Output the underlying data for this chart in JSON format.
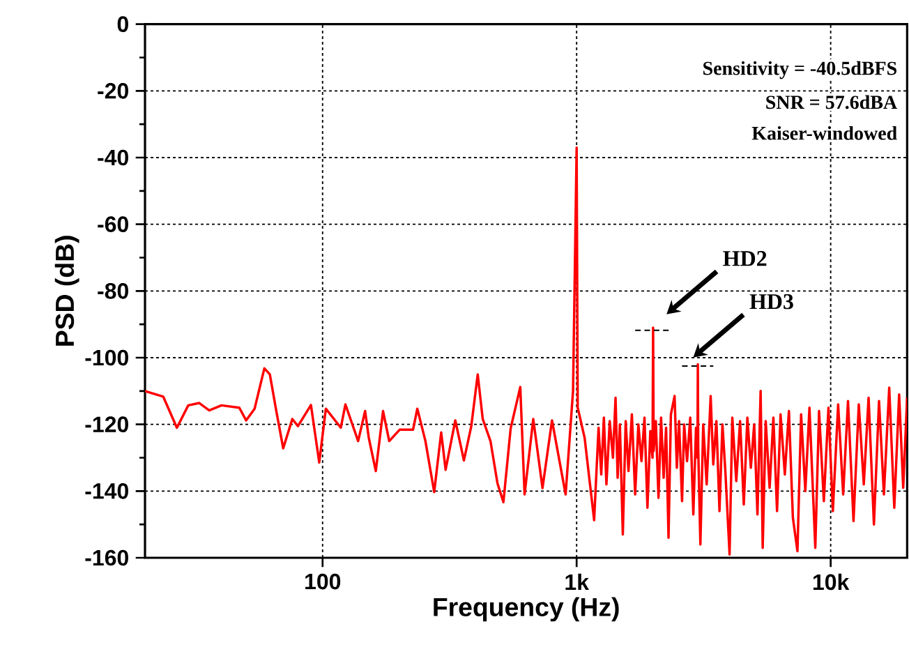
{
  "chart_data": {
    "type": "line",
    "xlabel": "Frequency (Hz)",
    "ylabel": "PSD (dB)",
    "log": "x",
    "grid": true,
    "xlim": [
      20,
      20000
    ],
    "ylim": [
      -160,
      0
    ],
    "xticks": [
      {
        "value": 100,
        "label": "100"
      },
      {
        "value": 1000,
        "label": "1k"
      },
      {
        "value": 10000,
        "label": "10k"
      }
    ],
    "yticks": [
      0,
      -20,
      -40,
      -60,
      -80,
      -100,
      -120,
      -140,
      -160
    ],
    "annotations": [
      "Sensitivity = -40.5dBFS",
      "SNR = 57.6dBA",
      "Kaiser-windowed",
      "HD2",
      "HD3"
    ],
    "x": [
      20,
      23.6,
      26.7,
      29.6,
      32.7,
      35.8,
      40,
      47,
      50,
      54,
      59,
      62,
      66,
      70,
      76,
      80,
      90,
      97,
      103,
      118,
      123,
      138,
      147,
      152,
      162,
      173,
      183,
      201,
      227,
      236,
      254,
      275,
      293,
      305,
      333,
      360,
      385,
      408,
      427,
      458,
      488,
      515,
      550,
      600,
      624,
      675,
      734,
      800,
      905,
      968,
      1000,
      1010,
      1075,
      1172,
      1220,
      1250,
      1280,
      1310,
      1350,
      1390,
      1423,
      1450,
      1480,
      1520,
      1560,
      1600,
      1650,
      1700,
      1750,
      1800,
      1850,
      1900,
      1950,
      1990,
      2000,
      2010,
      2050,
      2100,
      2150,
      2200,
      2250,
      2300,
      2350,
      2430,
      2480,
      2530,
      2600,
      2650,
      2720,
      2800,
      2880,
      2950,
      2990,
      3000,
      3010,
      3070,
      3150,
      3250,
      3370,
      3450,
      3550,
      3650,
      3750,
      3850,
      4000,
      4100,
      4250,
      4400,
      4550,
      4700,
      4850,
      5000,
      5150,
      5300,
      5400,
      5550,
      5750,
      5950,
      6150,
      6350,
      6600,
      6850,
      7100,
      7400,
      7650,
      7950,
      8250,
      8700,
      9000,
      9400,
      9800,
      10200,
      10700,
      11200,
      11700,
      12300,
      12900,
      13500,
      14100,
      14800,
      15500,
      16200,
      17000,
      17800,
      18600,
      19300,
      20000
    ],
    "series": [
      {
        "color": "#ff0000",
        "values": [
          -110,
          -111.7,
          -121,
          -114.3,
          -113.6,
          -115.8,
          -114.3,
          -115,
          -118.8,
          -115.3,
          -103.2,
          -105,
          -116.7,
          -127.2,
          -118.4,
          -120.5,
          -114.2,
          -131.4,
          -115.3,
          -121,
          -114,
          -125,
          -116,
          -124,
          -134,
          -116,
          -125,
          -121.6,
          -121.6,
          -115.3,
          -125,
          -140.3,
          -122.4,
          -133.6,
          -118.8,
          -130.8,
          -120.5,
          -105,
          -118.4,
          -125,
          -137.7,
          -143.3,
          -121.2,
          -108.8,
          -141,
          -118.4,
          -139.1,
          -118.8,
          -141,
          -110,
          -37,
          -115,
          -124,
          -148.7,
          -121,
          -135,
          -118,
          -138,
          -119,
          -130,
          -112,
          -136,
          -120,
          -153,
          -119,
          -134,
          -117,
          -141,
          -120,
          -131,
          -118,
          -145,
          -122,
          -130,
          -91,
          -128,
          -119,
          -142,
          -118,
          -136,
          -121,
          -154,
          -117,
          -111.5,
          -133,
          -119,
          -143,
          -120,
          -131,
          -118,
          -147,
          -121,
          -130,
          -102,
          -127,
          -156,
          -120,
          -138,
          -111.5,
          -132,
          -119,
          -146,
          -120,
          -134,
          -159,
          -118,
          -137,
          -119,
          -144,
          -118,
          -133,
          -120,
          -147,
          -110,
          -157,
          -119,
          -139,
          -118,
          -146,
          -117,
          -135,
          -116,
          -148,
          -158,
          -117,
          -140,
          -115,
          -157,
          -116,
          -143,
          -115,
          -146,
          -114,
          -141,
          -113,
          -149,
          -114,
          -138,
          -112,
          -150,
          -113,
          -141,
          -109,
          -145,
          -111,
          -139,
          -112
        ]
      },
      {
        "color": "#000000",
        "line_style": "dashed",
        "x": [
          1700,
          2350
        ],
        "values": [
          -91.8,
          -91.8
        ]
      },
      {
        "color": "#000000",
        "line_style": "dashed",
        "x": [
          2600,
          3450
        ],
        "values": [
          -102.5,
          -102.5
        ]
      }
    ]
  }
}
